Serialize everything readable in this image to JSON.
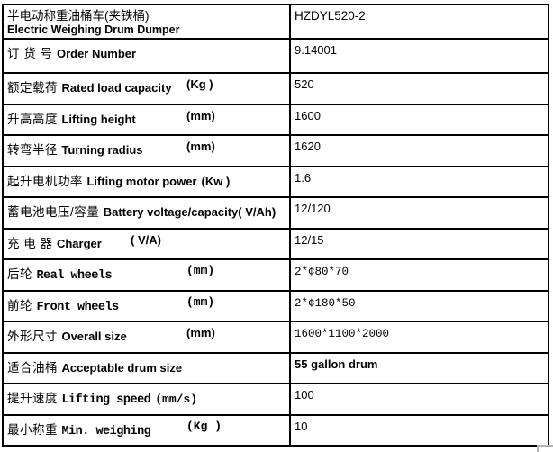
{
  "colors": {
    "border": "#000000",
    "text": "#000000",
    "background": "#ffffff",
    "artifact_gray": "#b3b3b3"
  },
  "header": {
    "title_cn": "半电动称重油桶车(夹铁桶)",
    "title_en": "Electric Weighing Drum Dumper",
    "model": "HZDYL520-2"
  },
  "rows": [
    {
      "cn": "订 货 号",
      "en": "Order Number",
      "unit": "",
      "unit_pos": "",
      "value": "9.14001",
      "label_font": "sans",
      "value_font": "sans",
      "value_weight": "normal"
    },
    {
      "cn": "额定载荷",
      "en": "Rated load capacity",
      "unit": "(Kg )",
      "unit_pos": "far",
      "value": "520",
      "label_font": "sans",
      "value_font": "sans",
      "value_weight": "normal"
    },
    {
      "cn": "升高高度",
      "en": "Lifting height",
      "unit": "(mm)",
      "unit_pos": "far",
      "value": "1600",
      "label_font": "sans",
      "value_font": "sans",
      "value_weight": "normal"
    },
    {
      "cn": "转弯半径",
      "en": "Turning radius",
      "unit": "(mm)",
      "unit_pos": "far",
      "value": "1620",
      "label_font": "sans",
      "value_font": "sans",
      "value_weight": "normal"
    },
    {
      "cn": "起升电机功率",
      "en": "Lifting motor power",
      "unit": "(Kw )",
      "unit_pos": "near",
      "value": "1.6",
      "label_font": "sans",
      "value_font": "sans",
      "value_weight": "normal"
    },
    {
      "cn": "蓄电池电压/容量",
      "en": "Battery voltage/capacity( V/Ah)",
      "unit": "",
      "unit_pos": "",
      "value": "12/120",
      "label_font": "sans",
      "value_font": "sans",
      "value_weight": "normal"
    },
    {
      "cn": "充 电 器",
      "en": "Charger",
      "unit": "( V/A)",
      "unit_pos": "mid",
      "value": "12/15",
      "label_font": "sans",
      "value_font": "sans",
      "value_weight": "normal"
    },
    {
      "cn": "后轮",
      "en": "Real wheels",
      "unit": "(mm)",
      "unit_pos": "far",
      "value": "2*¢80*70",
      "label_font": "mono",
      "value_font": "mono",
      "value_weight": "normal"
    },
    {
      "cn": "前轮",
      "en": "Front wheels",
      "unit": "(mm)",
      "unit_pos": "far",
      "value": "2*¢180*50",
      "label_font": "mono",
      "value_font": "mono",
      "value_weight": "normal"
    },
    {
      "cn": "外形尺寸",
      "en": "Overall size",
      "unit": "(mm)",
      "unit_pos": "far",
      "value": "1600*1100*2000",
      "label_font": "sans",
      "value_font": "mono",
      "value_weight": "normal"
    },
    {
      "cn": "适合油桶",
      "en": "Acceptable drum size",
      "unit": "",
      "unit_pos": "",
      "value": "55 gallon drum",
      "label_font": "sans",
      "value_font": "sans",
      "value_weight": "bold"
    },
    {
      "cn": "提升速度",
      "en": "Lifting speed",
      "unit": "(mm/s)",
      "unit_pos": "near",
      "value": "100",
      "label_font": "mono",
      "value_font": "sans",
      "value_weight": "normal"
    },
    {
      "cn": "最小称重",
      "en": "Min. weighing",
      "unit": "(Kg )",
      "unit_pos": "far",
      "value": "10",
      "label_font": "mono",
      "value_font": "sans",
      "value_weight": "normal"
    }
  ]
}
